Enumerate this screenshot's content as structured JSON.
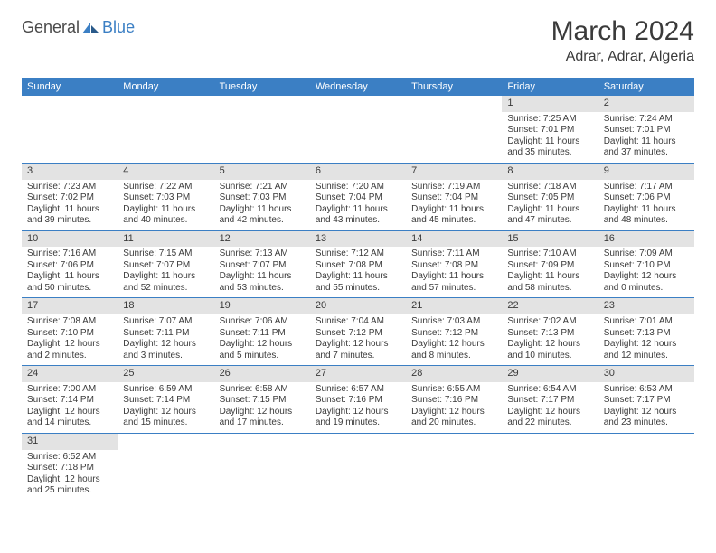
{
  "logo": {
    "text1": "General",
    "text2": "Blue"
  },
  "title": "March 2024",
  "location": "Adrar, Adrar, Algeria",
  "dayHeaders": [
    "Sunday",
    "Monday",
    "Tuesday",
    "Wednesday",
    "Thursday",
    "Friday",
    "Saturday"
  ],
  "colors": {
    "headerBg": "#3b7fc4",
    "headerText": "#ffffff",
    "dayNumBg": "#e3e3e3",
    "border": "#3b7fc4",
    "text": "#3a3a3a",
    "logoBlue": "#3b7fc4"
  },
  "weeks": [
    [
      null,
      null,
      null,
      null,
      null,
      {
        "n": "1",
        "sr": "Sunrise: 7:25 AM",
        "ss": "Sunset: 7:01 PM",
        "d1": "Daylight: 11 hours",
        "d2": "and 35 minutes."
      },
      {
        "n": "2",
        "sr": "Sunrise: 7:24 AM",
        "ss": "Sunset: 7:01 PM",
        "d1": "Daylight: 11 hours",
        "d2": "and 37 minutes."
      }
    ],
    [
      {
        "n": "3",
        "sr": "Sunrise: 7:23 AM",
        "ss": "Sunset: 7:02 PM",
        "d1": "Daylight: 11 hours",
        "d2": "and 39 minutes."
      },
      {
        "n": "4",
        "sr": "Sunrise: 7:22 AM",
        "ss": "Sunset: 7:03 PM",
        "d1": "Daylight: 11 hours",
        "d2": "and 40 minutes."
      },
      {
        "n": "5",
        "sr": "Sunrise: 7:21 AM",
        "ss": "Sunset: 7:03 PM",
        "d1": "Daylight: 11 hours",
        "d2": "and 42 minutes."
      },
      {
        "n": "6",
        "sr": "Sunrise: 7:20 AM",
        "ss": "Sunset: 7:04 PM",
        "d1": "Daylight: 11 hours",
        "d2": "and 43 minutes."
      },
      {
        "n": "7",
        "sr": "Sunrise: 7:19 AM",
        "ss": "Sunset: 7:04 PM",
        "d1": "Daylight: 11 hours",
        "d2": "and 45 minutes."
      },
      {
        "n": "8",
        "sr": "Sunrise: 7:18 AM",
        "ss": "Sunset: 7:05 PM",
        "d1": "Daylight: 11 hours",
        "d2": "and 47 minutes."
      },
      {
        "n": "9",
        "sr": "Sunrise: 7:17 AM",
        "ss": "Sunset: 7:06 PM",
        "d1": "Daylight: 11 hours",
        "d2": "and 48 minutes."
      }
    ],
    [
      {
        "n": "10",
        "sr": "Sunrise: 7:16 AM",
        "ss": "Sunset: 7:06 PM",
        "d1": "Daylight: 11 hours",
        "d2": "and 50 minutes."
      },
      {
        "n": "11",
        "sr": "Sunrise: 7:15 AM",
        "ss": "Sunset: 7:07 PM",
        "d1": "Daylight: 11 hours",
        "d2": "and 52 minutes."
      },
      {
        "n": "12",
        "sr": "Sunrise: 7:13 AM",
        "ss": "Sunset: 7:07 PM",
        "d1": "Daylight: 11 hours",
        "d2": "and 53 minutes."
      },
      {
        "n": "13",
        "sr": "Sunrise: 7:12 AM",
        "ss": "Sunset: 7:08 PM",
        "d1": "Daylight: 11 hours",
        "d2": "and 55 minutes."
      },
      {
        "n": "14",
        "sr": "Sunrise: 7:11 AM",
        "ss": "Sunset: 7:08 PM",
        "d1": "Daylight: 11 hours",
        "d2": "and 57 minutes."
      },
      {
        "n": "15",
        "sr": "Sunrise: 7:10 AM",
        "ss": "Sunset: 7:09 PM",
        "d1": "Daylight: 11 hours",
        "d2": "and 58 minutes."
      },
      {
        "n": "16",
        "sr": "Sunrise: 7:09 AM",
        "ss": "Sunset: 7:10 PM",
        "d1": "Daylight: 12 hours",
        "d2": "and 0 minutes."
      }
    ],
    [
      {
        "n": "17",
        "sr": "Sunrise: 7:08 AM",
        "ss": "Sunset: 7:10 PM",
        "d1": "Daylight: 12 hours",
        "d2": "and 2 minutes."
      },
      {
        "n": "18",
        "sr": "Sunrise: 7:07 AM",
        "ss": "Sunset: 7:11 PM",
        "d1": "Daylight: 12 hours",
        "d2": "and 3 minutes."
      },
      {
        "n": "19",
        "sr": "Sunrise: 7:06 AM",
        "ss": "Sunset: 7:11 PM",
        "d1": "Daylight: 12 hours",
        "d2": "and 5 minutes."
      },
      {
        "n": "20",
        "sr": "Sunrise: 7:04 AM",
        "ss": "Sunset: 7:12 PM",
        "d1": "Daylight: 12 hours",
        "d2": "and 7 minutes."
      },
      {
        "n": "21",
        "sr": "Sunrise: 7:03 AM",
        "ss": "Sunset: 7:12 PM",
        "d1": "Daylight: 12 hours",
        "d2": "and 8 minutes."
      },
      {
        "n": "22",
        "sr": "Sunrise: 7:02 AM",
        "ss": "Sunset: 7:13 PM",
        "d1": "Daylight: 12 hours",
        "d2": "and 10 minutes."
      },
      {
        "n": "23",
        "sr": "Sunrise: 7:01 AM",
        "ss": "Sunset: 7:13 PM",
        "d1": "Daylight: 12 hours",
        "d2": "and 12 minutes."
      }
    ],
    [
      {
        "n": "24",
        "sr": "Sunrise: 7:00 AM",
        "ss": "Sunset: 7:14 PM",
        "d1": "Daylight: 12 hours",
        "d2": "and 14 minutes."
      },
      {
        "n": "25",
        "sr": "Sunrise: 6:59 AM",
        "ss": "Sunset: 7:14 PM",
        "d1": "Daylight: 12 hours",
        "d2": "and 15 minutes."
      },
      {
        "n": "26",
        "sr": "Sunrise: 6:58 AM",
        "ss": "Sunset: 7:15 PM",
        "d1": "Daylight: 12 hours",
        "d2": "and 17 minutes."
      },
      {
        "n": "27",
        "sr": "Sunrise: 6:57 AM",
        "ss": "Sunset: 7:16 PM",
        "d1": "Daylight: 12 hours",
        "d2": "and 19 minutes."
      },
      {
        "n": "28",
        "sr": "Sunrise: 6:55 AM",
        "ss": "Sunset: 7:16 PM",
        "d1": "Daylight: 12 hours",
        "d2": "and 20 minutes."
      },
      {
        "n": "29",
        "sr": "Sunrise: 6:54 AM",
        "ss": "Sunset: 7:17 PM",
        "d1": "Daylight: 12 hours",
        "d2": "and 22 minutes."
      },
      {
        "n": "30",
        "sr": "Sunrise: 6:53 AM",
        "ss": "Sunset: 7:17 PM",
        "d1": "Daylight: 12 hours",
        "d2": "and 23 minutes."
      }
    ],
    [
      {
        "n": "31",
        "sr": "Sunrise: 6:52 AM",
        "ss": "Sunset: 7:18 PM",
        "d1": "Daylight: 12 hours",
        "d2": "and 25 minutes."
      },
      null,
      null,
      null,
      null,
      null,
      null
    ]
  ]
}
